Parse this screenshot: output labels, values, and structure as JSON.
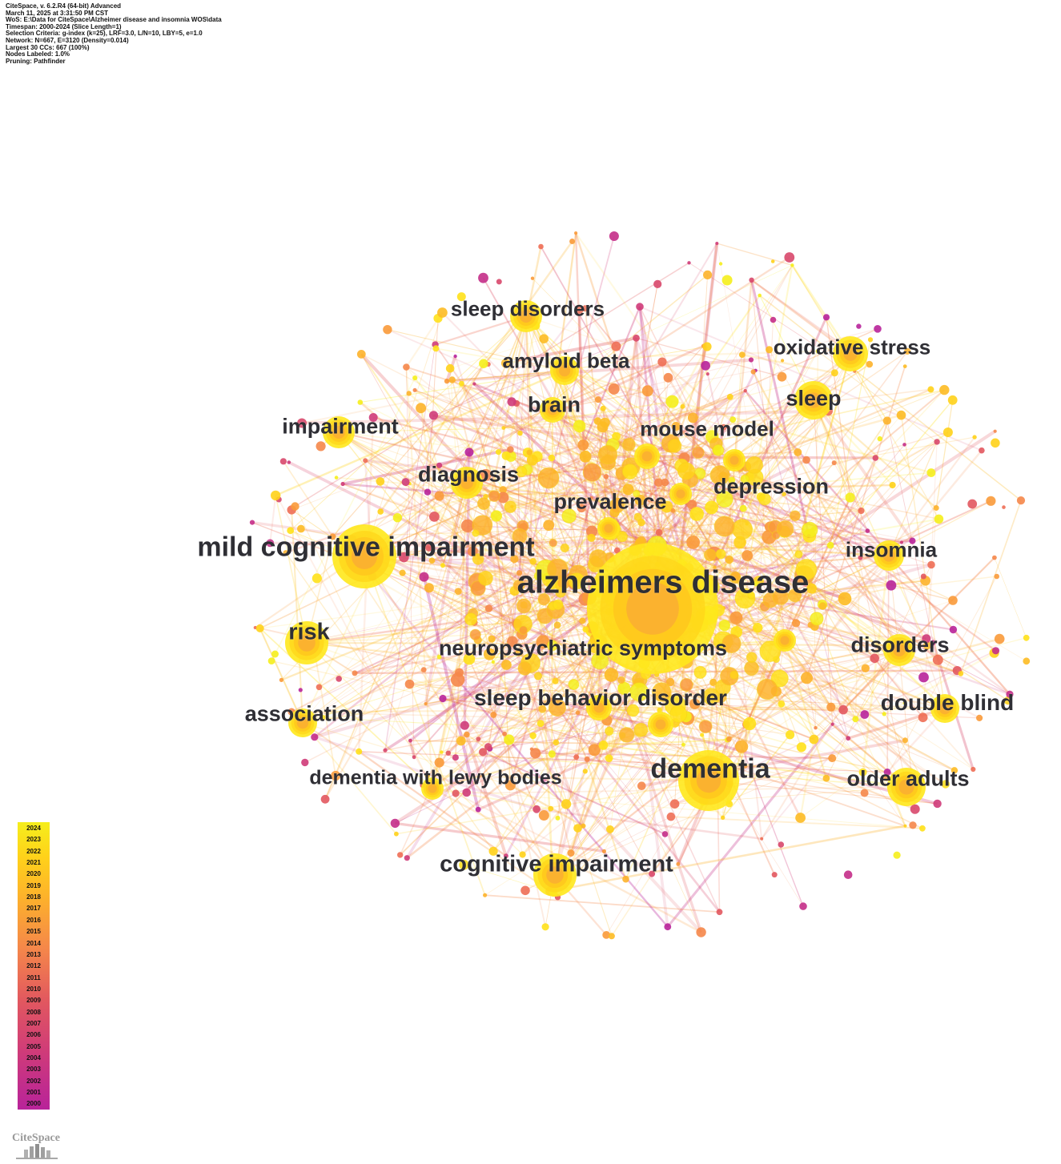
{
  "header_info": [
    "CiteSpace, v. 6.2.R4 (64-bit) Advanced",
    "March 11, 2025 at 3:31:50 PM CST",
    "WoS: E:\\Data for CiteSpace\\Alzheimer disease and insomnia  WOS\\data",
    "Timespan: 2000-2024 (Slice Length=1)",
    "Selection Criteria: g-index (k=25), LRF=3.0, L/N=10, LBY=5, e=1.0",
    "Network: N=667, E=3120 (Density=0.014)",
    "Largest 30 CCs: 667 (100%)",
    "Nodes Labeled: 1.0%",
    "Pruning: Pathfinder"
  ],
  "keywords": [
    {
      "label": "alzheimers disease",
      "size": 40
    },
    {
      "label": "mild cognitive impairment",
      "size": 34
    },
    {
      "label": "dementia",
      "size": 34
    },
    {
      "label": "cognitive impairment",
      "size": 29
    },
    {
      "label": "risk",
      "size": 29
    },
    {
      "label": "sleep",
      "size": 27
    },
    {
      "label": "sleep disorders",
      "size": 26
    },
    {
      "label": "oxidative stress",
      "size": 26
    },
    {
      "label": "impairment",
      "size": 27
    },
    {
      "label": "diagnosis",
      "size": 27
    },
    {
      "label": "brain",
      "size": 27
    },
    {
      "label": "amyloid beta",
      "size": 26
    },
    {
      "label": "mouse model",
      "size": 26
    },
    {
      "label": "depression",
      "size": 27
    },
    {
      "label": "prevalence",
      "size": 27
    },
    {
      "label": "insomnia",
      "size": 26
    },
    {
      "label": "neuropsychiatric symptoms",
      "size": 27
    },
    {
      "label": "disorders",
      "size": 27
    },
    {
      "label": "double blind",
      "size": 28
    },
    {
      "label": "sleep behavior disorder",
      "size": 28
    },
    {
      "label": "association",
      "size": 27
    },
    {
      "label": "dementia with lewy bodies",
      "size": 25
    },
    {
      "label": "older adults",
      "size": 27
    }
  ],
  "legend": {
    "years": [
      "2024",
      "2023",
      "2022",
      "2021",
      "2020",
      "2019",
      "2018",
      "2017",
      "2016",
      "2015",
      "2014",
      "2013",
      "2012",
      "2011",
      "2010",
      "2009",
      "2008",
      "2007",
      "2006",
      "2005",
      "2004",
      "2003",
      "2002",
      "2001",
      "2000"
    ],
    "colors": {
      "recent": "#f5ee1c",
      "mid": "#f5874a",
      "old": "#b8239a"
    }
  },
  "logo": {
    "text": "CiteSpace"
  }
}
